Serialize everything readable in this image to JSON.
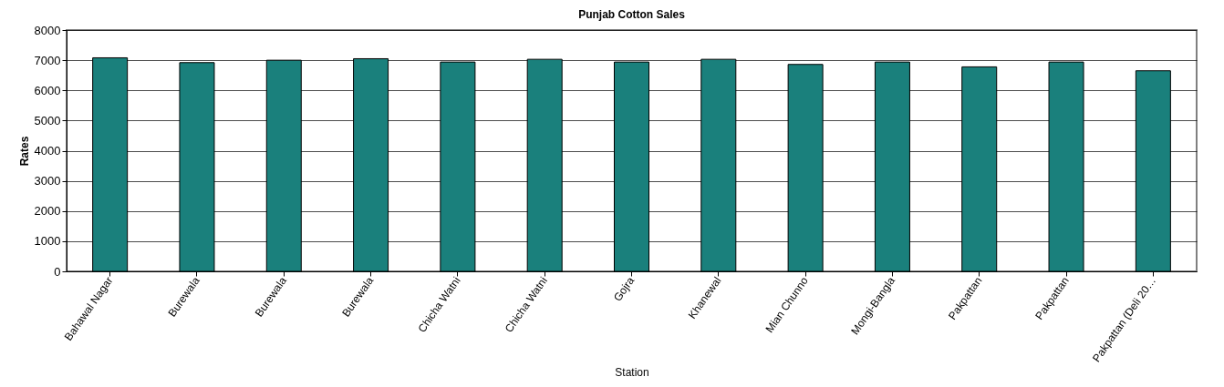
{
  "chart_data": {
    "type": "bar",
    "title": "Punjab Cotton Sales",
    "xlabel": "Station",
    "ylabel": "Rates",
    "categories": [
      "Bahawal Nagar",
      "Burewala",
      "Burewala",
      "Burewala",
      "Chicha Watni",
      "Chicha Watni",
      "Gojra",
      "Khanewal",
      "Mian Chunno",
      "Mongi-Bangla",
      "Pakpattan",
      "Pakpattan",
      "Pakpattan (Deli 20…"
    ],
    "values": [
      7080,
      6920,
      7000,
      7050,
      6940,
      7030,
      6940,
      7030,
      6860,
      6940,
      6780,
      6940,
      6650
    ],
    "color": "#1a807c",
    "ylim": [
      0,
      8000
    ],
    "yticks": [
      0,
      1000,
      2000,
      3000,
      4000,
      5000,
      6000,
      7000,
      8000
    ],
    "grid": "y"
  }
}
